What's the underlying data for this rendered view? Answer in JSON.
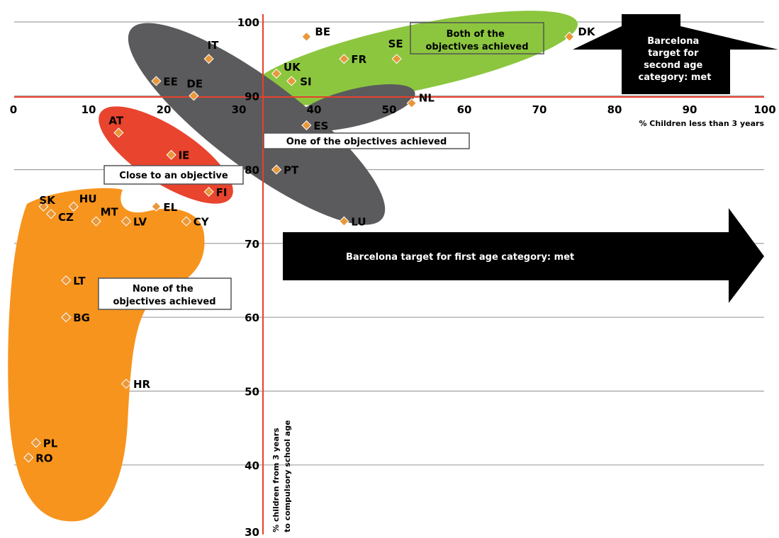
{
  "chart_data": {
    "type": "scatter",
    "xlabel": "% Children less than 3 years",
    "ylabel": "% children from 3 years to compulsory school age",
    "xlim": [
      0,
      100
    ],
    "ylim": [
      30,
      100
    ],
    "x_ticks": [
      "0",
      "10",
      "20",
      "30",
      "40",
      "50",
      "60",
      "70",
      "80",
      "90",
      "100"
    ],
    "y_ticks": [
      "30",
      "40",
      "50",
      "60",
      "70",
      "80",
      "90",
      "100"
    ],
    "grid": "horizontal",
    "colors": {
      "axis": "#e8402a",
      "point": "#e8973a",
      "gray_group": "#5b5b5d",
      "green_group": "#8cc63f",
      "red_group": "#e8442e",
      "orange_group": "#f7941d",
      "arrow": "#000000",
      "grid": "#a0a0a0"
    },
    "groups": [
      {
        "label": "Both of the objectives achieved",
        "color": "green"
      },
      {
        "label": "One of the objectives achieved",
        "color": "gray"
      },
      {
        "label": "Close to an objective",
        "color": "red"
      },
      {
        "label": "None of the objectives achieved",
        "color": "orange"
      }
    ],
    "targets": [
      {
        "label": "Barcelona target for second age category: met"
      },
      {
        "label": "Barcelona target for first age category: met"
      }
    ],
    "points": [
      {
        "label": "BE",
        "x": 39,
        "y": 98
      },
      {
        "label": "SE",
        "x": 51,
        "y": 95
      },
      {
        "label": "DK",
        "x": 74,
        "y": 98
      },
      {
        "label": "FR",
        "x": 44,
        "y": 95
      },
      {
        "label": "UK",
        "x": 35,
        "y": 93
      },
      {
        "label": "SI",
        "x": 37,
        "y": 92
      },
      {
        "label": "NL",
        "x": 53,
        "y": 89
      },
      {
        "label": "IT",
        "x": 26,
        "y": 95
      },
      {
        "label": "EE",
        "x": 19,
        "y": 92
      },
      {
        "label": "DE",
        "x": 24,
        "y": 90
      },
      {
        "label": "ES",
        "x": 39,
        "y": 86
      },
      {
        "label": "PT",
        "x": 35,
        "y": 80
      },
      {
        "label": "LU",
        "x": 44,
        "y": 73
      },
      {
        "label": "AT",
        "x": 14,
        "y": 85
      },
      {
        "label": "IE",
        "x": 21,
        "y": 82
      },
      {
        "label": "FI",
        "x": 26,
        "y": 77
      },
      {
        "label": "SK",
        "x": 4,
        "y": 75
      },
      {
        "label": "CZ",
        "x": 5,
        "y": 74
      },
      {
        "label": "HU",
        "x": 8,
        "y": 75
      },
      {
        "label": "MT",
        "x": 11,
        "y": 73
      },
      {
        "label": "LV",
        "x": 15,
        "y": 73
      },
      {
        "label": "EL",
        "x": 19,
        "y": 75
      },
      {
        "label": "CY",
        "x": 23,
        "y": 73
      },
      {
        "label": "LT",
        "x": 7,
        "y": 65
      },
      {
        "label": "BG",
        "x": 7,
        "y": 60
      },
      {
        "label": "HR",
        "x": 15,
        "y": 51
      },
      {
        "label": "PL",
        "x": 3,
        "y": 43
      },
      {
        "label": "RO",
        "x": 2,
        "y": 41
      }
    ]
  }
}
